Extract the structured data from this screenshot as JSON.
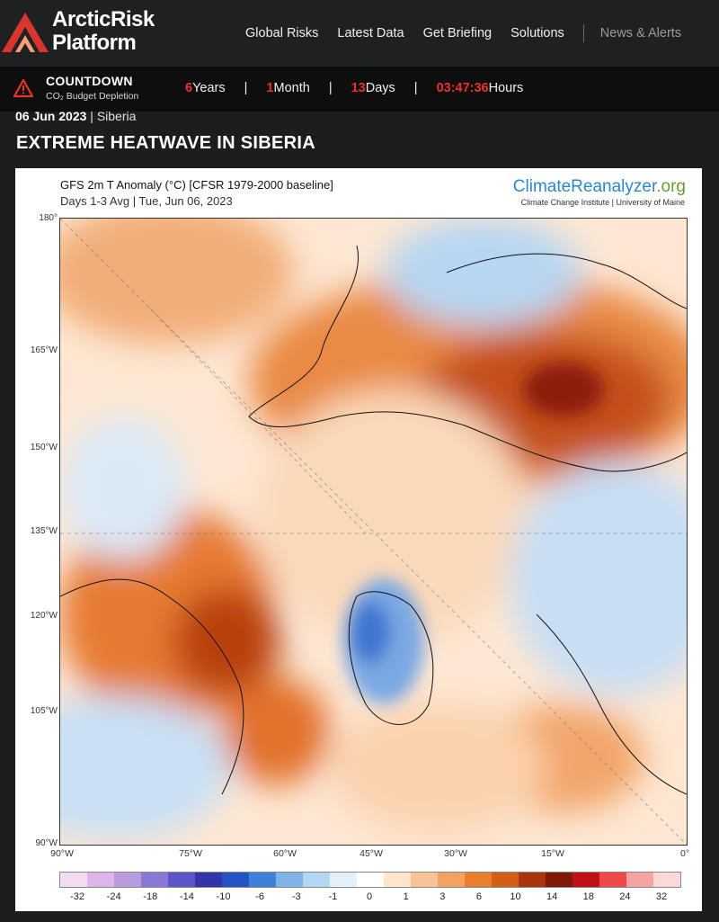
{
  "header": {
    "logo_line1": "ArcticRisk",
    "logo_line2": "Platform",
    "nav": [
      "Global Risks",
      "Latest Data",
      "Get Briefing",
      "Solutions"
    ],
    "nav_secondary": "News & Alerts"
  },
  "countdown": {
    "title": "COUNTDOWN",
    "subtitle": "CO₂ Budget Depletion",
    "years_value": "6",
    "years_label": "Years",
    "months_value": "1",
    "months_label": "Month",
    "days_value": "13",
    "days_label": "Days",
    "time_value": "03:47:36",
    "time_label": "Hours",
    "accent_color": "#e8332b"
  },
  "article": {
    "date": "06 Jun 2023",
    "separator": "|",
    "category": "Siberia",
    "headline": "EXTREME HEATWAVE IN SIBERIA"
  },
  "figure": {
    "title": "GFS 2m T Anomaly (°C) [CFSR 1979-2000 baseline]",
    "subtitle": "Days 1-3 Avg | Tue, Jun 06, 2023",
    "brand_main": "ClimateReanalyzer",
    "brand_tld": ".org",
    "brand_sub": "Climate Change Institute | University of Maine",
    "left_axis": [
      "180°",
      "165°W",
      "150°W",
      "135°W",
      "120°W",
      "105°W",
      "90°W"
    ],
    "bottom_axis": [
      "90°W",
      "75°W",
      "60°W",
      "45°W",
      "30°W",
      "15°W",
      "0°"
    ],
    "colorbar_labels": [
      "-32",
      "-24",
      "-18",
      "-14",
      "-10",
      "-6",
      "-3",
      "-1",
      "0",
      "1",
      "3",
      "6",
      "10",
      "14",
      "18",
      "24",
      "32"
    ],
    "colorbar_colors": [
      "#f3dcf0",
      "#dcb6e8",
      "#b99be0",
      "#8b78d6",
      "#5c55c6",
      "#3333aa",
      "#2552c6",
      "#3f80d8",
      "#7fb3e8",
      "#b5d6f3",
      "#e3effa",
      "#ffffff",
      "#fde4cc",
      "#f8c398",
      "#f3a262",
      "#e97f2e",
      "#d35f16",
      "#a8350c",
      "#7d1a08",
      "#c0101a",
      "#ee4a4a",
      "#f5a3a3",
      "#fcd9d9"
    ]
  }
}
